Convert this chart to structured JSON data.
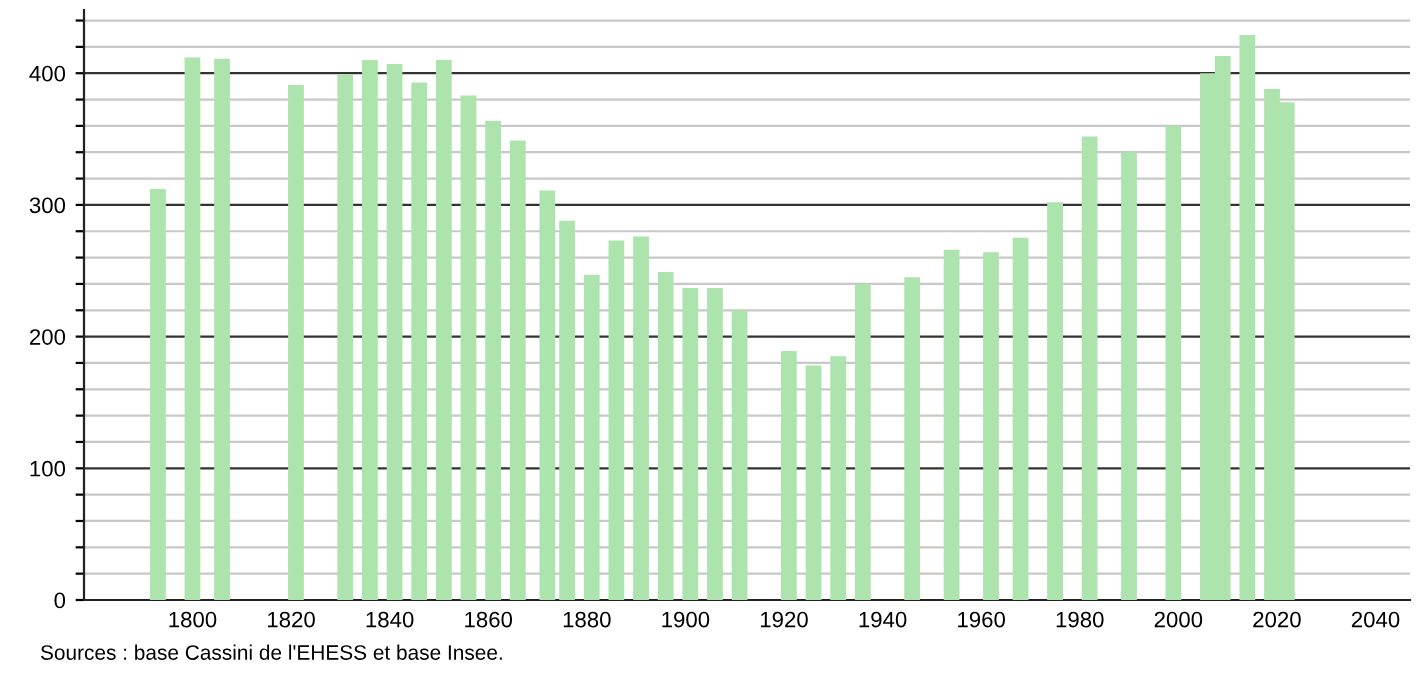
{
  "chart_data": {
    "type": "bar",
    "x": [
      1793,
      1800,
      1806,
      1821,
      1831,
      1836,
      1841,
      1846,
      1851,
      1856,
      1861,
      1866,
      1872,
      1876,
      1881,
      1886,
      1891,
      1896,
      1901,
      1906,
      1911,
      1921,
      1926,
      1931,
      1936,
      1946,
      1954,
      1962,
      1968,
      1975,
      1982,
      1990,
      1999,
      2006,
      2009,
      2014,
      2019,
      2022
    ],
    "values": [
      312,
      412,
      411,
      391,
      399,
      410,
      407,
      393,
      410,
      383,
      364,
      349,
      311,
      288,
      247,
      273,
      276,
      249,
      237,
      237,
      220,
      189,
      178,
      185,
      240,
      245,
      266,
      264,
      275,
      302,
      352,
      340,
      360,
      400,
      413,
      429,
      388,
      378
    ],
    "color": "#ade3ad",
    "xlim": [
      1778,
      2047
    ],
    "xticks": [
      1800,
      1820,
      1840,
      1860,
      1880,
      1900,
      1920,
      1940,
      1960,
      1980,
      2000,
      2020,
      2040
    ],
    "ylim": [
      0,
      448
    ],
    "yticks": [
      0,
      {
        "value": 20,
        "label": null
      },
      {
        "value": 40,
        "label": null
      },
      {
        "value": 60,
        "label": null
      },
      {
        "value": 80,
        "label": null
      },
      100,
      {
        "value": 120,
        "label": null
      },
      {
        "value": 140,
        "label": null
      },
      {
        "value": 160,
        "label": null
      },
      {
        "value": 180,
        "label": null
      },
      200,
      {
        "value": 220,
        "label": null
      },
      {
        "value": 240,
        "label": null
      },
      {
        "value": 260,
        "label": null
      },
      {
        "value": 280,
        "label": null
      },
      300,
      {
        "value": 320,
        "label": null
      },
      {
        "value": 340,
        "label": null
      },
      {
        "value": 360,
        "label": null
      },
      {
        "value": 380,
        "label": null
      },
      400,
      {
        "value": 420,
        "label": null
      },
      {
        "value": 440,
        "label": null
      }
    ],
    "grid": "y",
    "annotations": [
      "Sources : base Cassini de l'EHESS et base Insee."
    ]
  }
}
